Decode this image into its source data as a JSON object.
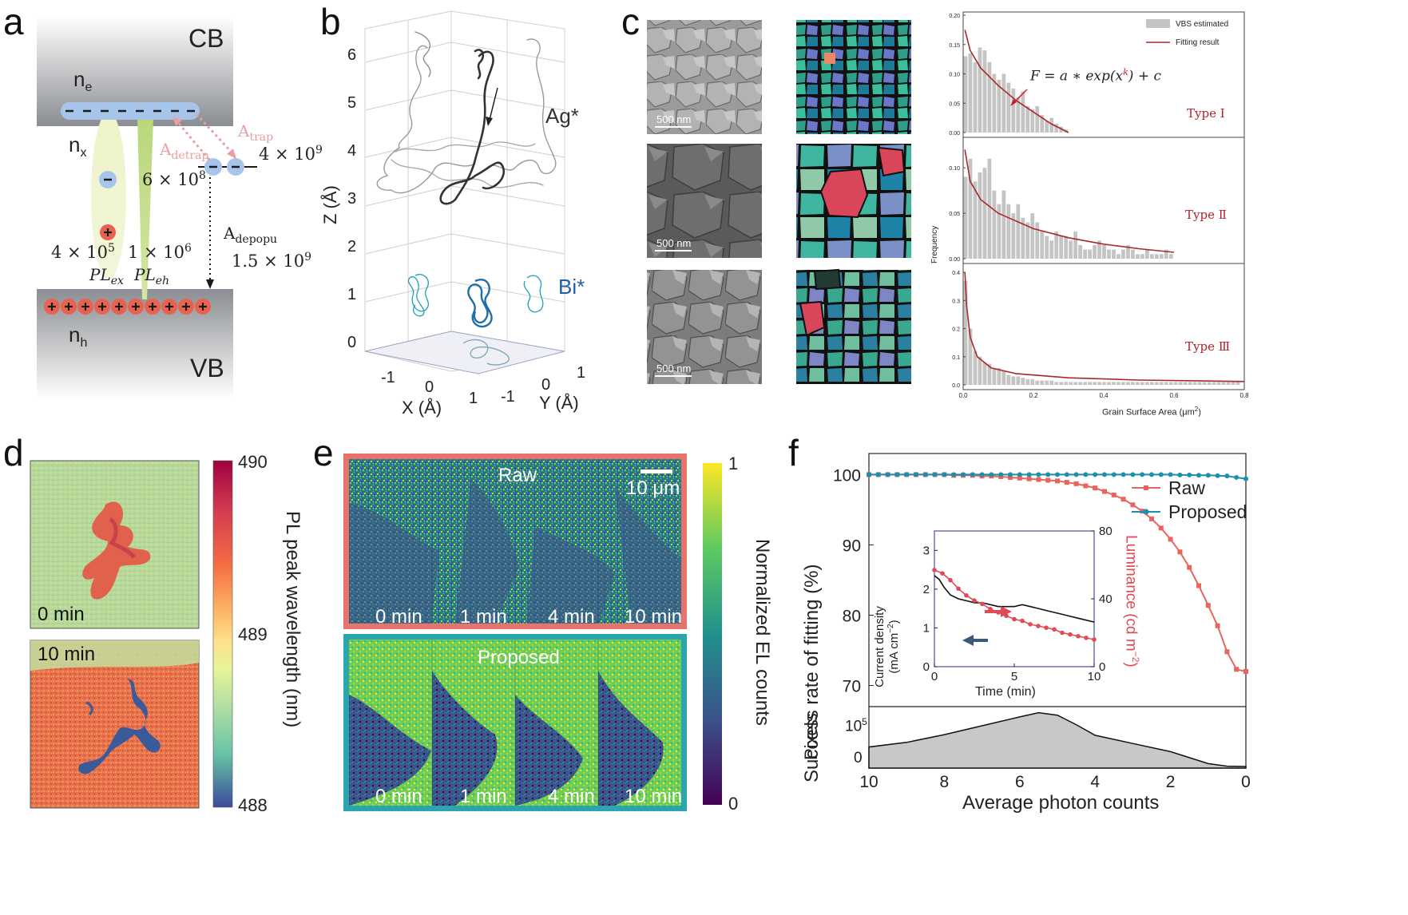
{
  "panels": {
    "a": {
      "letter": "a",
      "cb": "CB",
      "vb": "VB",
      "ne": "n",
      "ne_sub": "e",
      "nx": "n",
      "nx_sub": "x",
      "nh": "n",
      "nh_sub": "h",
      "a_trap": "A",
      "a_trap_sub": "trap",
      "a_detrap": "A",
      "a_detrap_sub": "detrap",
      "a_depopu": "A",
      "a_depopu_sub": "depopu",
      "v_trap": "4 × 10",
      "v_trap_exp": "9",
      "v_detrap": "6 × 10",
      "v_detrap_exp": "8",
      "v_depopu": "1.5 × 10",
      "v_depopu_exp": "9",
      "v_plex": "4 × 10",
      "v_plex_exp": "5",
      "v_pleh": "1 × 10",
      "v_pleh_exp": "6",
      "pl_ex": "PL",
      "pl_ex_sub": "ex",
      "pl_eh": "PL",
      "pl_eh_sub": "eh",
      "minus": "−",
      "plus": "+"
    },
    "b": {
      "letter": "b",
      "z_label": "Z (Å)",
      "x_label": "X (Å)",
      "y_label": "Y (Å)",
      "z_ticks": [
        "0",
        "1",
        "2",
        "3",
        "4",
        "5",
        "6"
      ],
      "x_ticks": [
        "-1",
        "0",
        "1"
      ],
      "y_ticks": [
        "-1",
        "0",
        "1"
      ],
      "ag_label": "Ag*",
      "bi_label": "Bi*",
      "colors": {
        "ag": "#333333",
        "bi": "#1e7fa0",
        "bi_label": "#1f5fa8"
      }
    },
    "c": {
      "letter": "c",
      "scale_label": "500 nm",
      "legend_bar": "VBS estimated",
      "legend_line": "Fitting result",
      "formula": "F = a ∗ exp(x",
      "formula_exp": "k",
      "formula_tail": ") + c",
      "ylabel": "Frequency",
      "xlabel": "Grain Surface Area (μm",
      "xlabel_exp": "2",
      "xlabel_tail": ")",
      "x_ticks": [
        "0.0",
        "0.2",
        "0.4",
        "0.6",
        "0.8"
      ],
      "types": [
        "Type Ⅰ",
        "Type Ⅱ",
        "Type Ⅲ"
      ],
      "y_ticks_1": [
        "0.00",
        "0.05",
        "0.10",
        "0.15",
        "0.20"
      ],
      "y_ticks_2": [
        "0.00",
        "0.05",
        "0.10"
      ],
      "y_ticks_3": [
        "0.0",
        "0.1",
        "0.2",
        "0.3",
        "0.4"
      ],
      "colors": {
        "bar": "#c4c4c4",
        "fit": "#a8282c",
        "type_text": "#b3202a"
      }
    },
    "d": {
      "letter": "d",
      "label_top": "0 min",
      "label_bottom": "10 min",
      "cb_label": "PL peak wavelength (nm)",
      "cb_ticks": [
        "490",
        "489",
        "488"
      ]
    },
    "e": {
      "letter": "e",
      "raw": "Raw",
      "proposed": "Proposed",
      "scale": "10 μm",
      "times": [
        "0 min",
        "1 min",
        "4 min",
        "10 min"
      ],
      "cb_label": "Normalized EL counts",
      "cb_ticks": [
        "1",
        "0"
      ],
      "colors": {
        "raw_border": "#e8736a",
        "proposed_border": "#2aa5b0"
      }
    },
    "f": {
      "letter": "f",
      "ylabel": "Success rate of fitting (%)",
      "xlabel": "Average photon counts",
      "pixels_label": "Pixels",
      "y_ticks": [
        "70",
        "80",
        "90",
        "100"
      ],
      "x_ticks": [
        "10",
        "8",
        "6",
        "4",
        "2",
        "0"
      ],
      "pixel_tick": "10",
      "pixel_tick_exp": "5",
      "pixel_tick_zero": "0",
      "legend_raw": "Raw",
      "legend_proposed": "Proposed",
      "inset_ylabel_1": "Current density",
      "inset_ylabel_2": "(mA cm",
      "inset_ylabel_2_exp": "−2",
      "inset_ylabel_2_tail": ")",
      "inset_y2label": "Luminance (cd m",
      "inset_y2label_exp": "−2",
      "inset_y2label_tail": ")",
      "inset_xlabel": "Time (min)",
      "inset_y_ticks": [
        "0",
        "1",
        "2",
        "3"
      ],
      "inset_y2_ticks": [
        "0",
        "40",
        "80"
      ],
      "inset_x_ticks": [
        "0",
        "5",
        "10"
      ],
      "colors": {
        "raw": "#e8645e",
        "proposed": "#1a8fae",
        "inset_current": "#111111",
        "inset_lum": "#e04a55",
        "arrow_left": "#3c5a78",
        "arrow_right": "#e04a55",
        "pixels_fill": "#c8c8c8"
      }
    }
  },
  "chart_data": [
    {
      "type": "bar",
      "panel": "c",
      "title": "",
      "xlabel": "Grain Surface Area (μm2)",
      "ylabel": "Frequency",
      "subplot": "Type Ⅰ",
      "series": [
        {
          "name": "VBS estimated",
          "values": [
            0.13,
            0.135,
            0.12,
            0.145,
            0.14,
            0.12,
            0.1,
            0.09,
            0.1,
            0.085,
            0.075,
            0.06,
            0.07,
            0.045,
            0.04,
            0.045,
            0.03,
            0.02,
            0.025,
            0.015,
            0.01,
            0.005
          ]
        },
        {
          "name": "Fitting result",
          "x": [
            0.005,
            0.02,
            0.05,
            0.1,
            0.15,
            0.2,
            0.25,
            0.3
          ],
          "values": [
            0.175,
            0.14,
            0.11,
            0.08,
            0.055,
            0.035,
            0.015,
            0.0
          ]
        }
      ],
      "bar_x_start": 0.0,
      "bar_width": 0.0136,
      "xlim": [
        0.0,
        0.8
      ],
      "ylim": [
        0.0,
        0.2
      ]
    },
    {
      "type": "bar",
      "panel": "c",
      "subplot": "Type Ⅱ",
      "series": [
        {
          "name": "VBS estimated",
          "values": [
            0.09,
            0.11,
            0.085,
            0.095,
            0.1,
            0.11,
            0.075,
            0.06,
            0.075,
            0.06,
            0.05,
            0.06,
            0.045,
            0.04,
            0.05,
            0.04,
            0.03,
            0.025,
            0.02,
            0.03,
            0.025,
            0.025,
            0.02,
            0.03,
            0.015,
            0.01,
            0.01,
            0.015,
            0.02,
            0.015,
            0.01,
            0.01,
            0.005,
            0.01,
            0.015,
            0.01,
            0.005,
            0.005,
            0.01,
            0.005,
            0.005,
            0.005,
            0.01,
            0.005
          ]
        },
        {
          "name": "Fitting result",
          "x": [
            0.005,
            0.02,
            0.05,
            0.1,
            0.2,
            0.3,
            0.4,
            0.5,
            0.6
          ],
          "values": [
            0.12,
            0.085,
            0.065,
            0.05,
            0.033,
            0.023,
            0.016,
            0.011,
            0.007
          ]
        }
      ],
      "bar_x_start": 0.0,
      "bar_width": 0.0136,
      "xlim": [
        0.0,
        0.8
      ],
      "ylim": [
        0.0,
        0.13
      ]
    },
    {
      "type": "bar",
      "panel": "c",
      "subplot": "Type Ⅲ",
      "series": [
        {
          "name": "VBS estimated",
          "values": [
            0.37,
            0.2,
            0.12,
            0.1,
            0.08,
            0.075,
            0.06,
            0.06,
            0.05,
            0.035,
            0.03,
            0.03,
            0.025,
            0.02,
            0.02,
            0.015,
            0.015,
            0.015,
            0.015,
            0.01,
            0.01,
            0.01,
            0.01,
            0.01,
            0.01,
            0.01,
            0.01,
            0.01,
            0.01,
            0.01,
            0.01,
            0.01,
            0.01,
            0.01,
            0.01,
            0.01,
            0.01,
            0.01,
            0.01,
            0.01,
            0.01,
            0.01,
            0.01,
            0.01,
            0.01,
            0.01,
            0.01,
            0.01,
            0.01,
            0.01,
            0.01,
            0.01,
            0.01,
            0.01,
            0.01,
            0.01,
            0.01,
            0.01
          ]
        },
        {
          "name": "Fitting result",
          "x": [
            0.005,
            0.01,
            0.02,
            0.04,
            0.08,
            0.15,
            0.3,
            0.5,
            0.8
          ],
          "values": [
            0.4,
            0.28,
            0.17,
            0.1,
            0.06,
            0.04,
            0.025,
            0.017,
            0.012
          ]
        }
      ],
      "bar_x_start": 0.0,
      "bar_width": 0.0136,
      "xlim": [
        0.0,
        0.8
      ],
      "ylim": [
        0.0,
        0.42
      ]
    },
    {
      "type": "line",
      "panel": "f",
      "xlabel": "Average photon counts",
      "ylabel": "Success rate of fitting (%)",
      "xlim": [
        10,
        0
      ],
      "ylim": [
        67,
        103
      ],
      "series": [
        {
          "name": "Raw",
          "x": [
            10,
            9.75,
            9.5,
            9.25,
            9,
            8.75,
            8.5,
            8.25,
            8,
            7.75,
            7.5,
            7.25,
            7,
            6.75,
            6.5,
            6.25,
            6,
            5.75,
            5.5,
            5.25,
            5,
            4.75,
            4.5,
            4.25,
            4,
            3.75,
            3.5,
            3.25,
            3,
            2.75,
            2.5,
            2.25,
            2,
            1.75,
            1.5,
            1.25,
            1,
            0.75,
            0.5,
            0.25,
            0
          ],
          "values": [
            100,
            100,
            100,
            100,
            100,
            100,
            100,
            100,
            100,
            99.9,
            99.9,
            99.9,
            99.8,
            99.8,
            99.7,
            99.6,
            99.5,
            99.4,
            99.3,
            99.2,
            99.1,
            98.9,
            98.7,
            98.4,
            98.1,
            97.6,
            97.1,
            96.5,
            95.7,
            94.8,
            93.7,
            92.4,
            90.8,
            89.0,
            86.8,
            84.2,
            81.4,
            78.5,
            74.8,
            72.3,
            72.0
          ]
        },
        {
          "name": "Proposed",
          "x": [
            10,
            9.75,
            9.5,
            9.25,
            9,
            8.75,
            8.5,
            8.25,
            8,
            7.75,
            7.5,
            7.25,
            7,
            6.75,
            6.5,
            6.25,
            6,
            5.75,
            5.5,
            5.25,
            5,
            4.75,
            4.5,
            4.25,
            4,
            3.75,
            3.5,
            3.25,
            3,
            2.75,
            2.5,
            2.25,
            2,
            1.75,
            1.5,
            1.25,
            1,
            0.75,
            0.5,
            0.25,
            0
          ],
          "values": [
            100,
            100,
            100,
            100,
            100,
            100,
            100,
            100,
            100,
            100,
            100,
            100,
            100,
            100,
            100,
            100,
            100,
            100,
            100,
            100,
            100,
            100,
            100,
            100,
            100,
            100,
            100,
            100,
            100,
            100,
            100,
            100,
            100,
            99.95,
            99.95,
            99.9,
            99.9,
            99.85,
            99.8,
            99.6,
            99.4
          ]
        }
      ]
    },
    {
      "type": "line",
      "panel": "f-inset",
      "xlabel": "Time (min)",
      "ylabel": "Current density (mA cm−2)",
      "y2label": "Luminance (cd m−2)",
      "xlim": [
        0,
        10
      ],
      "ylim": [
        0,
        3.5
      ],
      "y2lim": [
        0,
        80
      ],
      "series": [
        {
          "name": "Current density",
          "x": [
            0,
            0.3,
            0.6,
            1.0,
            1.5,
            2.0,
            2.5,
            3.0,
            3.5,
            4.0,
            4.5,
            5.0,
            5.5,
            6.0,
            6.5,
            7.0,
            7.5,
            8.0,
            8.5,
            9.0,
            9.5,
            10
          ],
          "values": [
            2.35,
            2.25,
            2.05,
            1.85,
            1.75,
            1.7,
            1.65,
            1.65,
            1.6,
            1.55,
            1.55,
            1.55,
            1.6,
            1.55,
            1.5,
            1.45,
            1.4,
            1.35,
            1.3,
            1.25,
            1.2,
            1.15
          ]
        },
        {
          "name": "Luminance",
          "axis": "y2",
          "x": [
            0,
            0.5,
            1.0,
            1.5,
            2.0,
            2.5,
            3.0,
            3.5,
            4.0,
            4.5,
            5.0,
            5.5,
            6.0,
            6.5,
            7.0,
            7.5,
            8.0,
            8.5,
            9.0,
            9.5,
            10
          ],
          "values": [
            57,
            55,
            51,
            46,
            42,
            39,
            37,
            34,
            32,
            30,
            28,
            27,
            25,
            24,
            23,
            22,
            20,
            19,
            18,
            17,
            16
          ]
        }
      ]
    },
    {
      "type": "area",
      "panel": "f-pixels",
      "ylabel": "Pixels",
      "xlabel": "Average photon counts",
      "xlim": [
        10,
        0
      ],
      "ylim": [
        0,
        160000
      ],
      "series": [
        {
          "name": "Pixels",
          "x": [
            10,
            9,
            8,
            7,
            6,
            5.5,
            5,
            4.5,
            4,
            3,
            2,
            1.5,
            1,
            0.5,
            0
          ],
          "values": [
            55000,
            68000,
            90000,
            115000,
            140000,
            152000,
            145000,
            118000,
            88000,
            65000,
            42000,
            25000,
            8000,
            1000,
            0
          ]
        }
      ]
    }
  ]
}
